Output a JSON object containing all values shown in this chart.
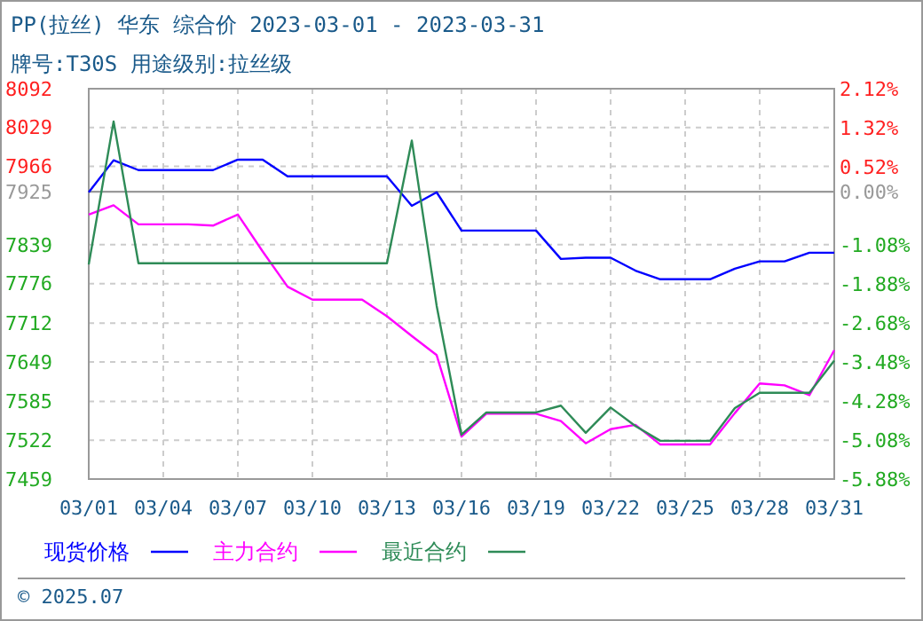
{
  "chart_data": {
    "type": "line",
    "title": "PP(拉丝) 华东 综合价 2023-03-01 - 2023-03-31",
    "subtitle": "牌号:T30S 用途级别:拉丝级",
    "x": [
      "--03-01",
      "--03-02",
      "--03-03",
      "--03-04",
      "--03-05",
      "--03-06",
      "--03-07",
      "--03-08",
      "--03-09",
      "--03-10",
      "--03-11",
      "--03-12",
      "--03-13",
      "--03-14",
      "--03-15",
      "--03-16",
      "--03-17",
      "--03-18",
      "--03-19",
      "--03-20",
      "--03-21",
      "--03-22",
      "--03-23",
      "--03-24",
      "--03-25",
      "--03-26",
      "--03-27",
      "--03-28",
      "--03-29",
      "--03-30",
      "--03-31"
    ],
    "series": [
      {
        "name": "现货价格",
        "color": "#0000ff",
        "values": [
          7924,
          7976,
          7960,
          7960,
          7960,
          7960,
          7977,
          7977,
          7950,
          7950,
          7950,
          7950,
          7950,
          7902,
          7924,
          7862,
          7862,
          7862,
          7862,
          7816,
          7818,
          7818,
          7797,
          7783,
          7783,
          7783,
          7800,
          7812,
          7812,
          7826,
          7826
        ]
      },
      {
        "name": "主力合约",
        "color": "#ff00ff",
        "values": [
          7888,
          7903,
          7872,
          7872,
          7872,
          7870,
          7888,
          7828,
          7771,
          7750,
          7750,
          7750,
          7723,
          7691,
          7660,
          7528,
          7565,
          7565,
          7565,
          7553,
          7517,
          7540,
          7547,
          7515,
          7515,
          7515,
          7566,
          7614,
          7611,
          7595,
          7668
        ]
      },
      {
        "name": "最近合约",
        "color": "#2e8b57",
        "values": [
          7807,
          8039,
          7809,
          7809,
          7809,
          7809,
          7809,
          7809,
          7809,
          7809,
          7809,
          7809,
          7809,
          8008,
          7740,
          7531,
          7567,
          7567,
          7567,
          7578,
          7534,
          7575,
          7545,
          7521,
          7521,
          7521,
          7574,
          7599,
          7599,
          7599,
          7651
        ]
      }
    ],
    "xlim": [
      "--03-01",
      "--03-31"
    ],
    "xticks": [
      {
        "value": "--03-01",
        "label": "03/01"
      },
      {
        "value": "--03-04",
        "label": "03/04"
      },
      {
        "value": "--03-07",
        "label": "03/07"
      },
      {
        "value": "--03-10",
        "label": "03/10"
      },
      {
        "value": "--03-13",
        "label": "03/13"
      },
      {
        "value": "--03-16",
        "label": "03/16"
      },
      {
        "value": "--03-19",
        "label": "03/19"
      },
      {
        "value": "--03-22",
        "label": "03/22"
      },
      {
        "value": "--03-25",
        "label": "03/25"
      },
      {
        "value": "--03-28",
        "label": "03/28"
      },
      {
        "value": "--03-31",
        "label": "03/31"
      }
    ],
    "ylim": [
      7459,
      8092
    ],
    "yticks": [
      7459,
      7522,
      7585,
      7649,
      7712,
      7776,
      7839,
      7925,
      7966,
      8029,
      8092
    ],
    "y2lim": [
      -5.88,
      2.12
    ],
    "y2ticks": [
      {
        "value": -5.88,
        "label": "-5.88%"
      },
      {
        "value": -5.08,
        "label": "-5.08%"
      },
      {
        "value": -4.28,
        "label": "-4.28%"
      },
      {
        "value": -3.48,
        "label": "-3.48%"
      },
      {
        "value": -2.68,
        "label": "-2.68%"
      },
      {
        "value": -1.88,
        "label": "-1.88%"
      },
      {
        "value": -1.08,
        "label": "-1.08%"
      },
      {
        "value": 0,
        "label": "0.00%"
      },
      {
        "value": 0.52,
        "label": "0.52%"
      },
      {
        "value": 1.32,
        "label": "1.32%"
      },
      {
        "value": 2.12,
        "label": "2.12%"
      }
    ],
    "ref_lines": [
      {
        "axis": "y",
        "value": 7925,
        "color": "#999999"
      }
    ],
    "grid": true,
    "legend": "bottom",
    "marker": "none",
    "line_style": "solid",
    "annotations": [
      "© 2025.07"
    ]
  }
}
